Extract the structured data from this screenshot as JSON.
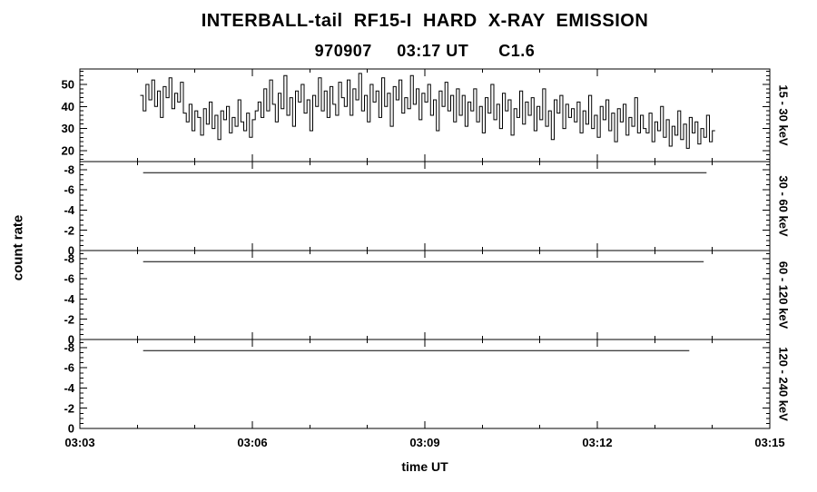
{
  "chart_data": {
    "type": "line",
    "title": "INTERBALL-tail  RF15-I  HARD  X-RAY  EMISSION",
    "subtitle": "970907     03:17 UT      C1.6",
    "ylabel": "count rate",
    "x_axis": {
      "label": "time UT",
      "range": [
        3,
        15
      ],
      "major_ticks": [
        3,
        6,
        9,
        12,
        15
      ],
      "tick_labels": [
        "03:03",
        "03:06",
        "03:09",
        "03:12",
        "03:15"
      ],
      "minor_step": 1
    },
    "panels": [
      {
        "label": "15 - 30 keV",
        "ylim": [
          15,
          57
        ],
        "yticks": [
          20,
          30,
          40,
          50
        ],
        "ytick_labels": [
          "20",
          "30",
          "40",
          "50"
        ],
        "yminor_step": 2,
        "series": {
          "kind": "step",
          "x_start": 4.05,
          "x_step": 0.05,
          "values": [
            45,
            38,
            50,
            43,
            52,
            40,
            47,
            35,
            49,
            44,
            53,
            39,
            46,
            42,
            51,
            37,
            33,
            41,
            29,
            38,
            35,
            27,
            39,
            32,
            42,
            30,
            36,
            25,
            38,
            34,
            40,
            28,
            35,
            31,
            43,
            33,
            29,
            37,
            26,
            34,
            38,
            42,
            35,
            48,
            38,
            52,
            41,
            33,
            46,
            39,
            54,
            36,
            44,
            31,
            47,
            42,
            50,
            37,
            43,
            29,
            45,
            40,
            53,
            38,
            47,
            35,
            49,
            41,
            36,
            51,
            44,
            40,
            52,
            36,
            48,
            43,
            55,
            38,
            45,
            33,
            50,
            42,
            47,
            35,
            53,
            40,
            46,
            31,
            49,
            43,
            52,
            37,
            44,
            39,
            54,
            41,
            48,
            34,
            46,
            42,
            50,
            36,
            43,
            29,
            47,
            40,
            51,
            38,
            45,
            33,
            48,
            36,
            45,
            31,
            42,
            38,
            48,
            33,
            40,
            28,
            44,
            37,
            50,
            34,
            41,
            30,
            46,
            38,
            43,
            27,
            39,
            35,
            47,
            32,
            42,
            36,
            44,
            29,
            40,
            34,
            48,
            31,
            38,
            25,
            43,
            37,
            45,
            30,
            41,
            35,
            39,
            33,
            42,
            28,
            38,
            32,
            45,
            30,
            36,
            26,
            40,
            34,
            43,
            29,
            37,
            24,
            39,
            33,
            41,
            27,
            35,
            31,
            44,
            28,
            36,
            30,
            28,
            37,
            24,
            33,
            29,
            40,
            26,
            34,
            22,
            31,
            27,
            38,
            25,
            32,
            21,
            35,
            28,
            33,
            23,
            30,
            26,
            36,
            24,
            29
          ]
        }
      },
      {
        "label": "30 - 60 keV",
        "ylim": [
          0,
          -8.8
        ],
        "yticks": [
          0,
          -2,
          -4,
          -6,
          -8
        ],
        "ytick_labels": [
          "0",
          "-2",
          "-4",
          "-6",
          "-8"
        ],
        "yminor_step": 0.5,
        "series": {
          "kind": "flat",
          "y": -7.7,
          "x_from": 4.1,
          "x_to": 13.9
        }
      },
      {
        "label": "60 - 120 keV",
        "ylim": [
          0,
          -8.8
        ],
        "yticks": [
          0,
          -2,
          -4,
          -6,
          -8
        ],
        "ytick_labels": [
          "0",
          "-2",
          "-4",
          "-6",
          "-8"
        ],
        "yminor_step": 0.5,
        "series": {
          "kind": "flat",
          "y": -7.7,
          "x_from": 4.1,
          "x_to": 13.85
        }
      },
      {
        "label": "120 - 240 keV",
        "ylim": [
          0,
          -8.8
        ],
        "yticks": [
          0,
          -2,
          -4,
          -6,
          -8
        ],
        "ytick_labels": [
          "0",
          "-2",
          "-4",
          "-6",
          "-8"
        ],
        "yminor_step": 0.5,
        "series": {
          "kind": "flat",
          "y": -7.7,
          "x_from": 4.1,
          "x_to": 13.6
        }
      }
    ]
  }
}
